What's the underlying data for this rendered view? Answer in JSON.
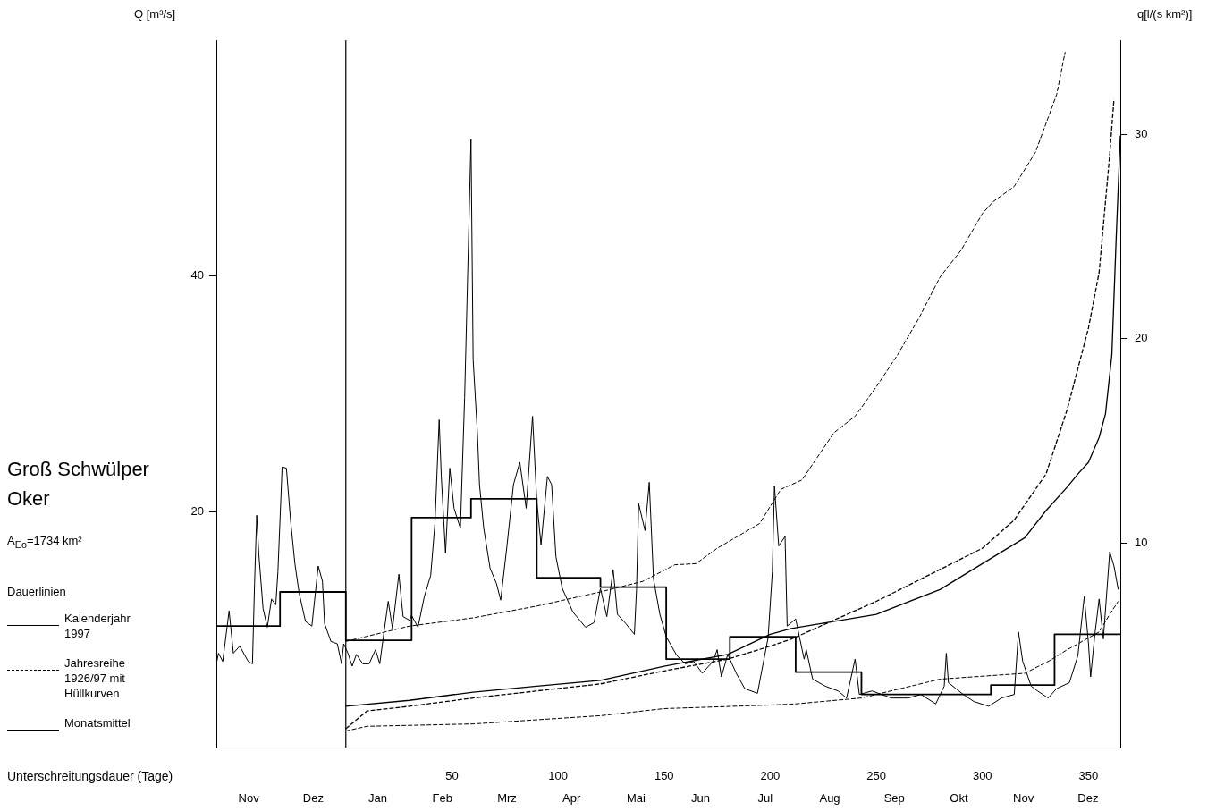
{
  "chart_data": {
    "type": "line",
    "title": "Groß Schwülper",
    "subtitle": "Oker",
    "annotations": [
      "A$_{Eo}$=1734 km²",
      "Nov",
      "Dez",
      "Jan",
      "Feb",
      "Mrz",
      "Apr",
      "Mai",
      "Jun",
      "Jul",
      "Aug",
      "Sep",
      "Okt",
      "Nov",
      "Dez"
    ],
    "legend_title": "Dauerlinien",
    "legend": "left",
    "xlabel": "Unterschreitungsdauer (Tage)",
    "ylabel": "Q [m³/s]",
    "y2label": "q[l/(s km²)]",
    "xlim": [
      -61,
      365
    ],
    "xticks": [
      50,
      100,
      150,
      200,
      250,
      300,
      350
    ],
    "ylim": [
      0,
      60
    ],
    "yticks": [
      20,
      40
    ],
    "y2lim": [
      0,
      34.6
    ],
    "y2ticks": [
      10,
      20,
      30
    ],
    "grid": false,
    "marker": "none",
    "ref_lines": [
      {
        "axis": "x",
        "value": 0,
        "color": "#000000"
      }
    ],
    "series": [
      {
        "color": "#000000",
        "line_style": "solid",
        "x": [
          -61,
          -60,
          -58,
          -55,
          -53,
          -50,
          -46,
          -44,
          -43,
          -42,
          -41,
          -39,
          -37,
          -35,
          -33,
          -32,
          -30,
          -28,
          -26,
          -24,
          -22,
          -19,
          -16,
          -13,
          -11,
          -10,
          -7,
          -4,
          -2,
          -1,
          1,
          3,
          5,
          8,
          11,
          14,
          16,
          18,
          20,
          22,
          25,
          27,
          30,
          31,
          34,
          37,
          40,
          42,
          44,
          45,
          47,
          49,
          51,
          54,
          56,
          58,
          59,
          60,
          62,
          63,
          65,
          68,
          71,
          73,
          76,
          79,
          82,
          85,
          88,
          90,
          92,
          95,
          97,
          99,
          102,
          107,
          113,
          117,
          120,
          123,
          126,
          128,
          132,
          136,
          137,
          138,
          141,
          143,
          145,
          148,
          151,
          156,
          160,
          164,
          168,
          173,
          175,
          177,
          180,
          184,
          188,
          194,
          196,
          199,
          201,
          202,
          204,
          207,
          208,
          212,
          216,
          217,
          220,
          226,
          232,
          236,
          240,
          242,
          248,
          257,
          265,
          271,
          278,
          282,
          283,
          284,
          291,
          296,
          303,
          309,
          315,
          317,
          319,
          323,
          326,
          331,
          335,
          341,
          345,
          348,
          350,
          351,
          353,
          355,
          357,
          360,
          362,
          364
        ],
        "values": [
          7.1,
          8.0,
          7.3,
          11.6,
          8.0,
          8.6,
          7.3,
          7.1,
          13.9,
          19.7,
          16.4,
          11.8,
          10.2,
          12.6,
          12.1,
          14.9,
          23.8,
          23.7,
          19.2,
          15.6,
          13.1,
          10.7,
          10.3,
          15.4,
          14.1,
          10.5,
          9.0,
          8.8,
          7.1,
          8.8,
          8.0,
          6.9,
          7.9,
          7.1,
          7.1,
          8.3,
          7.1,
          9.8,
          12.4,
          10.1,
          14.7,
          11.1,
          10.8,
          11.2,
          10.2,
          12.8,
          14.6,
          19.0,
          27.8,
          23.0,
          16.5,
          23.7,
          20.3,
          18.6,
          29.7,
          44.3,
          51.6,
          32.9,
          26.7,
          22.3,
          18.6,
          15.2,
          13.9,
          12.5,
          17.2,
          22.3,
          24.2,
          20.3,
          28.1,
          20.9,
          17.2,
          23.0,
          22.3,
          16.2,
          13.5,
          11.5,
          10.2,
          10.6,
          13.5,
          11.1,
          15.1,
          11.3,
          10.5,
          9.6,
          13.4,
          20.7,
          18.4,
          22.5,
          14.3,
          11.3,
          9.4,
          7.8,
          7.1,
          7.3,
          6.3,
          7.3,
          8.3,
          6.0,
          7.9,
          6.3,
          5.0,
          4.6,
          6.5,
          9.3,
          14.9,
          22.2,
          17.1,
          17.9,
          10.3,
          10.9,
          7.5,
          8.3,
          5.8,
          5.2,
          4.8,
          4.2,
          7.5,
          4.5,
          4.8,
          4.2,
          4.2,
          4.5,
          3.7,
          5.2,
          8.0,
          5.5,
          4.5,
          3.9,
          3.5,
          4.2,
          4.5,
          9.8,
          7.3,
          5.2,
          4.8,
          4.2,
          5.0,
          5.5,
          7.8,
          12.8,
          8.8,
          6.0,
          9.6,
          12.6,
          9.2,
          16.6,
          15.4,
          13.4
        ]
      },
      {
        "name": "Kalenderjahr 1997",
        "color": "#000000",
        "line_style": "solid",
        "x": [
          0,
          30,
          60,
          90,
          120,
          150,
          180,
          200,
          210,
          250,
          280,
          300,
          320,
          330,
          340,
          345,
          350,
          355,
          358,
          361,
          363,
          365
        ],
        "values": [
          3.5,
          4.0,
          4.7,
          5.2,
          5.7,
          6.9,
          7.9,
          9.6,
          10.1,
          11.3,
          13.4,
          15.6,
          17.8,
          20.1,
          22.1,
          23.2,
          24.2,
          26.3,
          28.3,
          33.3,
          43,
          51.9
        ]
      },
      {
        "name": "Jahresreihe 1926/97 mit Hüllkurven",
        "color": "#000000",
        "line_style": "dashed",
        "x": [
          0,
          10,
          30,
          60,
          90,
          120,
          150,
          180,
          200,
          210,
          250,
          280,
          300,
          315,
          330,
          340,
          350,
          355,
          360,
          362
        ],
        "values": [
          1.6,
          3.1,
          3.5,
          4.2,
          4.8,
          5.4,
          6.5,
          7.5,
          8.6,
          9.2,
          12.4,
          15.1,
          16.9,
          19.3,
          23.2,
          28.7,
          35.6,
          40.3,
          50.3,
          55.0
        ]
      },
      {
        "color": "#000000",
        "line_style": "dashed",
        "x": [
          0,
          30,
          60,
          90,
          120,
          140,
          155,
          165,
          175,
          195,
          205,
          215,
          230,
          240,
          250,
          260,
          270,
          280,
          290,
          300,
          305,
          315,
          325,
          335,
          339
        ],
        "values": [
          9.0,
          10.3,
          11.0,
          12.0,
          13.2,
          14.1,
          15.5,
          15.6,
          16.9,
          19.0,
          21.9,
          22.7,
          26.7,
          28.1,
          30.6,
          33.3,
          36.4,
          39.9,
          42.2,
          45.3,
          46.3,
          47.6,
          50.5,
          55.4,
          59.0
        ]
      },
      {
        "color": "#000000",
        "line_style": "dashed",
        "x": [
          0,
          10,
          60,
          120,
          150,
          200,
          212,
          243,
          280,
          320,
          332,
          340,
          355,
          360,
          364
        ],
        "values": [
          1.4,
          1.8,
          2.0,
          2.7,
          3.3,
          3.6,
          3.7,
          4.2,
          5.8,
          6.3,
          7.4,
          8.3,
          9.8,
          11.3,
          12.4
        ]
      },
      {
        "type": "step",
        "name": "Monatsmittel",
        "color": "#000000",
        "x": [
          -61,
          -31,
          0,
          31,
          59,
          90,
          120,
          151,
          181,
          212,
          243,
          273,
          304,
          334,
          365
        ],
        "values": [
          10.3,
          13.2,
          9.1,
          19.5,
          21.1,
          14.4,
          13.6,
          7.5,
          9.4,
          6.4,
          4.5,
          4.5,
          5.3,
          9.6,
          9.6
        ]
      }
    ]
  }
}
